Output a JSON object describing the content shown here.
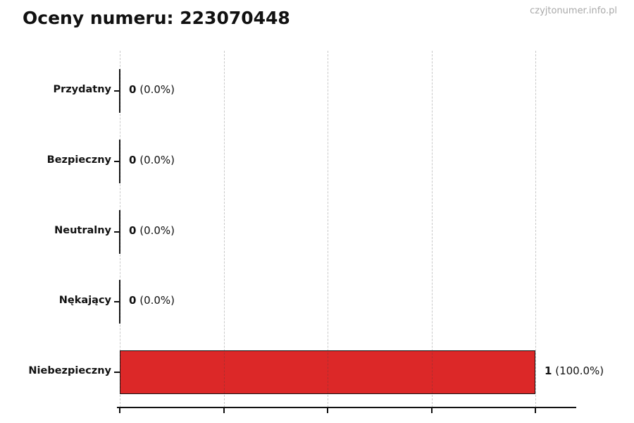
{
  "watermark": {
    "text": "czyjtonumer.info.pl",
    "color": "#a9a9a9"
  },
  "chart_data": {
    "type": "bar",
    "orientation": "horizontal",
    "title": "Oceny numeru: 223070448",
    "categories": [
      "Przydatny",
      "Bezpieczny",
      "Neutralny",
      "Nękający",
      "Niebezpieczny"
    ],
    "values": [
      0,
      0,
      0,
      0,
      1
    ],
    "value_labels": [
      {
        "count": "0",
        "percent": "(0.0%)"
      },
      {
        "count": "0",
        "percent": "(0.0%)"
      },
      {
        "count": "0",
        "percent": "(0.0%)"
      },
      {
        "count": "0",
        "percent": "(0.0%)"
      },
      {
        "count": "1",
        "percent": "(100.0%)"
      }
    ],
    "bar_color": "#dc2828",
    "bar_edge_color": "#111111",
    "xlabel": "",
    "ylabel": "",
    "xlim": [
      0,
      1.1
    ],
    "x_gridlines": [
      0,
      0.25,
      0.5,
      0.75,
      1.0
    ],
    "grid_style": "vertical-dashed",
    "legend": "none"
  }
}
